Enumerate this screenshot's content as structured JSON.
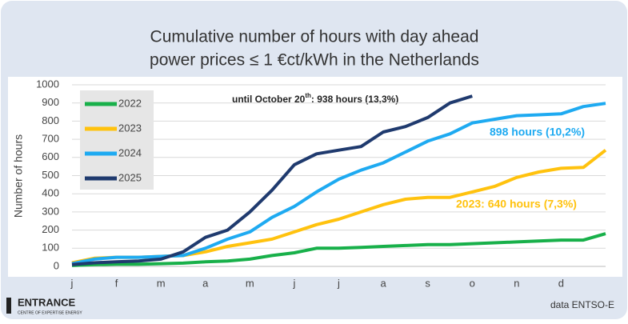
{
  "chart_data": {
    "type": "line",
    "title": [
      "Cumulative number of hours with day ahead",
      "power prices ≤ 1 €ct/kWh in the Netherlands"
    ],
    "y_label": "Number of hours",
    "categories": [
      "j",
      null,
      "f",
      null,
      "m",
      null,
      "a",
      null,
      "m",
      null,
      "j",
      null,
      "j",
      null,
      "a",
      null,
      "s",
      null,
      "o",
      null,
      "n",
      null,
      "d",
      null,
      null
    ],
    "series": [
      {
        "name": "2022",
        "color": "#18b04a",
        "values": [
          5,
          10,
          12,
          12,
          15,
          18,
          25,
          30,
          40,
          60,
          75,
          100,
          100,
          105,
          110,
          115,
          120,
          120,
          125,
          130,
          135,
          140,
          145,
          145,
          180
        ]
      },
      {
        "name": "2023",
        "color": "#ffc20e",
        "values": [
          20,
          45,
          50,
          50,
          55,
          60,
          80,
          110,
          130,
          150,
          190,
          230,
          260,
          300,
          340,
          370,
          380,
          380,
          410,
          440,
          490,
          520,
          540,
          545,
          640
        ]
      },
      {
        "name": "2024",
        "color": "#1eaaf1",
        "values": [
          15,
          40,
          50,
          50,
          55,
          60,
          100,
          150,
          190,
          270,
          330,
          410,
          480,
          530,
          570,
          630,
          690,
          730,
          790,
          810,
          830,
          835,
          840,
          880,
          898
        ]
      },
      {
        "name": "2025",
        "color": "#1f3a6e",
        "values": [
          10,
          20,
          25,
          30,
          40,
          80,
          160,
          200,
          300,
          420,
          560,
          620,
          640,
          660,
          740,
          770,
          820,
          900,
          938,
          null,
          null,
          null,
          null,
          null,
          null
        ]
      }
    ],
    "ylim": [
      0,
      1000
    ],
    "yticks": [
      0,
      100,
      200,
      300,
      400,
      500,
      600,
      700,
      800,
      900,
      1000
    ],
    "grid": true,
    "annotations": [
      {
        "text": "until October 20",
        "sup": "th",
        "rest": ": 938 hours (13,3%)",
        "color": "#222222"
      },
      {
        "text": "898 hours (10,2%)",
        "color": "#1eaaf1"
      },
      {
        "text": "2023: 640 hours (7,3%)",
        "color": "#ffc20e"
      }
    ],
    "logo": {
      "name": "ENTRANCE",
      "tagline": "CENTRE OF EXPERTISE ENERGY"
    },
    "source": "data ENTSO-E"
  }
}
